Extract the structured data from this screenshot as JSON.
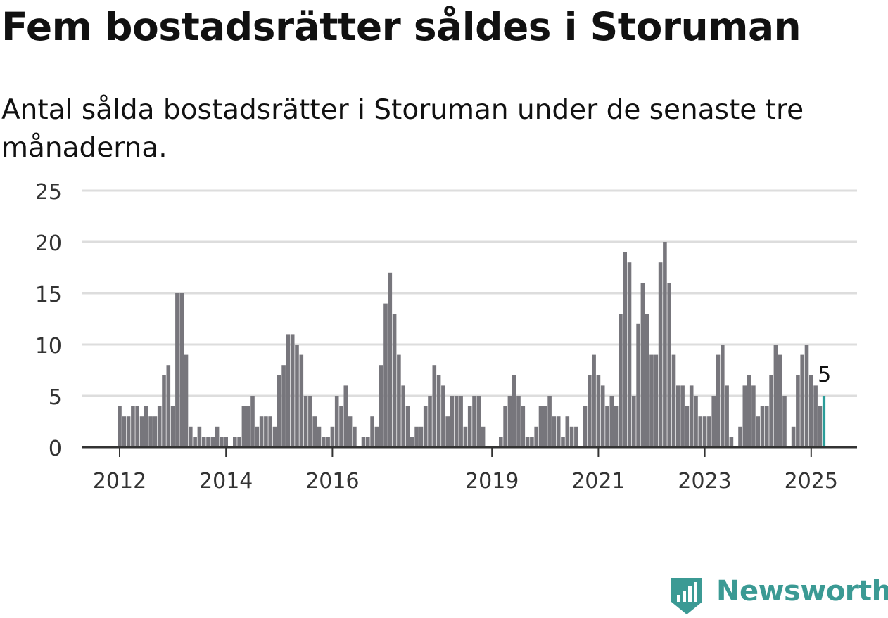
{
  "title": "Fem bostadsrätter såldes i Storuman",
  "subtitle": "Antal sålda bostadsrätter i Storuman under de senaste tre månaderna.",
  "brand": {
    "name": "Newsworthy",
    "icon": "bar-chart-badge-icon",
    "color": "#3b9a94"
  },
  "chart_data": {
    "type": "bar",
    "start": "2012-01",
    "frequency": "monthly",
    "ylim": [
      0,
      25
    ],
    "yticks": [
      0,
      5,
      10,
      15,
      20,
      25
    ],
    "xtick_labels": [
      "2012",
      "2014",
      "2016",
      "2019",
      "2021",
      "2023",
      "2025"
    ],
    "grid": true,
    "bar_color": "#77767c",
    "highlight_color": "#2a9d99",
    "highlight_label": "5",
    "values": [
      4,
      3,
      3,
      4,
      4,
      3,
      4,
      3,
      3,
      4,
      7,
      8,
      4,
      15,
      15,
      9,
      2,
      1,
      2,
      1,
      1,
      1,
      2,
      1,
      1,
      0,
      1,
      1,
      4,
      4,
      5,
      2,
      3,
      3,
      3,
      2,
      7,
      8,
      11,
      11,
      10,
      9,
      5,
      5,
      3,
      2,
      1,
      1,
      2,
      5,
      4,
      6,
      3,
      2,
      0,
      1,
      1,
      3,
      2,
      8,
      14,
      17,
      13,
      9,
      6,
      4,
      1,
      2,
      2,
      4,
      5,
      8,
      7,
      6,
      3,
      5,
      5,
      5,
      2,
      4,
      5,
      5,
      2,
      0,
      0,
      0,
      1,
      4,
      5,
      7,
      5,
      4,
      1,
      1,
      2,
      4,
      4,
      5,
      3,
      3,
      1,
      3,
      2,
      2,
      0,
      4,
      7,
      9,
      7,
      6,
      4,
      5,
      4,
      13,
      19,
      18,
      5,
      12,
      16,
      13,
      9,
      9,
      18,
      20,
      16,
      9,
      6,
      6,
      4,
      6,
      5,
      3,
      3,
      3,
      5,
      9,
      10,
      6,
      1,
      0,
      2,
      6,
      7,
      6,
      3,
      4,
      4,
      7,
      10,
      9,
      5,
      0,
      2,
      7,
      9,
      10,
      7,
      6,
      4,
      5
    ]
  }
}
